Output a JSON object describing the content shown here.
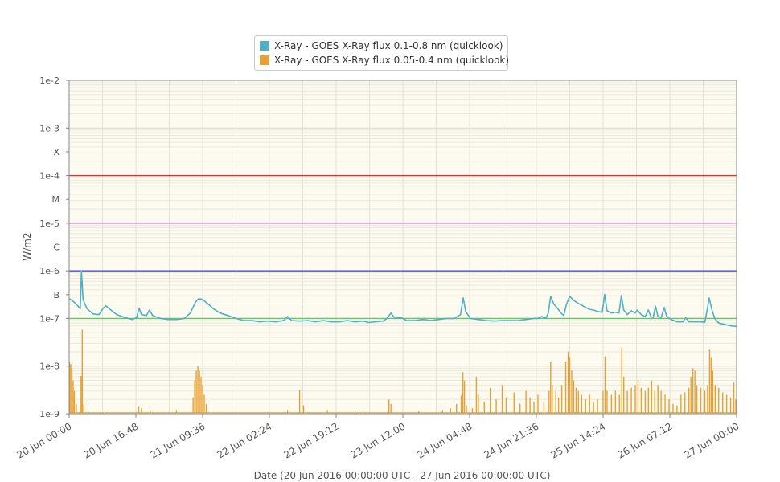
{
  "chart_data": {
    "type": "line",
    "title": "",
    "xlabel": "Date (20 Jun 2016 00:00:00 UTC - 27 Jun 2016 00:00:00 UTC)",
    "ylabel": "W/m2",
    "y_scale": "log",
    "ylim": [
      1e-09,
      0.01
    ],
    "x_range_hours": [
      0,
      168
    ],
    "x_ticks": [
      {
        "h": 0,
        "label": "20 Jun 00:00"
      },
      {
        "h": 16.8,
        "label": "20 Jun 16:48"
      },
      {
        "h": 33.6,
        "label": "21 Jun 09:36"
      },
      {
        "h": 50.4,
        "label": "22 Jun 02:24"
      },
      {
        "h": 67.2,
        "label": "22 Jun 19:12"
      },
      {
        "h": 84,
        "label": "23 Jun 12:00"
      },
      {
        "h": 100.8,
        "label": "24 Jun 04:48"
      },
      {
        "h": 117.6,
        "label": "24 Jun 21:36"
      },
      {
        "h": 134.4,
        "label": "25 Jun 14:24"
      },
      {
        "h": 151.2,
        "label": "26 Jun 07:12"
      },
      {
        "h": 168,
        "label": "27 Jun 00:00"
      }
    ],
    "y_ticks": [
      {
        "v": 0.01,
        "label": "1e-2"
      },
      {
        "v": 0.001,
        "label": "1e-3"
      },
      {
        "v": 0.000316,
        "label": "X"
      },
      {
        "v": 0.0001,
        "label": "1e-4"
      },
      {
        "v": 3.16e-05,
        "label": "M"
      },
      {
        "v": 1e-05,
        "label": "1e-5"
      },
      {
        "v": 3.16e-06,
        "label": "C"
      },
      {
        "v": 1e-06,
        "label": "1e-6"
      },
      {
        "v": 3.16e-07,
        "label": "B"
      },
      {
        "v": 1e-07,
        "label": "1e-7"
      },
      {
        "v": 1e-08,
        "label": "1e-8"
      },
      {
        "v": 1e-09,
        "label": "1e-9"
      }
    ],
    "threshold_lines": [
      {
        "v": 0.0001,
        "color": "#e03030"
      },
      {
        "v": 1e-05,
        "color": "#d070d0"
      },
      {
        "v": 1e-06,
        "color": "#3a3ad8"
      },
      {
        "v": 1e-07,
        "color": "#5ad05a"
      }
    ],
    "legend_position": "top-center",
    "grid": true,
    "series": [
      {
        "name": "X-Ray - GOES X-Ray flux 0.1-0.8 nm (quicklook)",
        "color": "#4fb0c6",
        "points": [
          [
            0,
            2.6e-07
          ],
          [
            1,
            2.3e-07
          ],
          [
            2,
            1.9e-07
          ],
          [
            2.8,
            1.6e-07
          ],
          [
            3.1,
            1e-06
          ],
          [
            3.5,
            2.5e-07
          ],
          [
            4.5,
            1.6e-07
          ],
          [
            6,
            1.25e-07
          ],
          [
            7.5,
            1.2e-07
          ],
          [
            8.5,
            1.6e-07
          ],
          [
            9.2,
            1.85e-07
          ],
          [
            10.5,
            1.5e-07
          ],
          [
            12,
            1.2e-07
          ],
          [
            14,
            1.05e-07
          ],
          [
            16,
            9.5e-08
          ],
          [
            17,
            1.05e-07
          ],
          [
            17.6,
            1.65e-07
          ],
          [
            18.2,
            1.2e-07
          ],
          [
            19.5,
            1.15e-07
          ],
          [
            20.2,
            1.5e-07
          ],
          [
            21,
            1.15e-07
          ],
          [
            23,
            1e-07
          ],
          [
            25,
            9.5e-08
          ],
          [
            27,
            9.5e-08
          ],
          [
            29,
            1e-07
          ],
          [
            30.5,
            1.3e-07
          ],
          [
            31.8,
            2.2e-07
          ],
          [
            32.6,
            2.6e-07
          ],
          [
            33.6,
            2.5e-07
          ],
          [
            35,
            2e-07
          ],
          [
            36.5,
            1.55e-07
          ],
          [
            38,
            1.3e-07
          ],
          [
            40,
            1.15e-07
          ],
          [
            42,
            1e-07
          ],
          [
            44,
            9e-08
          ],
          [
            46,
            9e-08
          ],
          [
            48,
            8.5e-08
          ],
          [
            50,
            8.8e-08
          ],
          [
            52,
            8.5e-08
          ],
          [
            54,
            9e-08
          ],
          [
            55,
            1.1e-07
          ],
          [
            56,
            9e-08
          ],
          [
            58,
            8.8e-08
          ],
          [
            60,
            9e-08
          ],
          [
            62,
            8.5e-08
          ],
          [
            64,
            9e-08
          ],
          [
            66,
            8.5e-08
          ],
          [
            68,
            8.5e-08
          ],
          [
            70,
            9e-08
          ],
          [
            72,
            8.5e-08
          ],
          [
            74,
            8.8e-08
          ],
          [
            75.5,
            8.2e-08
          ],
          [
            77,
            8.5e-08
          ],
          [
            79,
            8.8e-08
          ],
          [
            80,
            1e-07
          ],
          [
            81,
            1.3e-07
          ],
          [
            82,
            1e-07
          ],
          [
            83.5,
            1.05e-07
          ],
          [
            85,
            9e-08
          ],
          [
            87,
            9e-08
          ],
          [
            89,
            9.5e-08
          ],
          [
            91,
            9e-08
          ],
          [
            93,
            9.5e-08
          ],
          [
            95,
            1e-07
          ],
          [
            97,
            1e-07
          ],
          [
            98.5,
            1.2e-07
          ],
          [
            99.2,
            2.7e-07
          ],
          [
            99.8,
            1.4e-07
          ],
          [
            101,
            1e-07
          ],
          [
            103,
            9.5e-08
          ],
          [
            105,
            9e-08
          ],
          [
            107,
            8.8e-08
          ],
          [
            109,
            9e-08
          ],
          [
            111,
            9e-08
          ],
          [
            113,
            9e-08
          ],
          [
            115,
            9.5e-08
          ],
          [
            117,
            1e-07
          ],
          [
            118,
            1e-07
          ],
          [
            119,
            1.1e-07
          ],
          [
            120,
            1e-07
          ],
          [
            120.6,
            1.3e-07
          ],
          [
            121.2,
            2.9e-07
          ],
          [
            122,
            2e-07
          ],
          [
            123,
            1.6e-07
          ],
          [
            123.8,
            1.3e-07
          ],
          [
            124.5,
            1.15e-07
          ],
          [
            125.2,
            2e-07
          ],
          [
            126,
            2.9e-07
          ],
          [
            127,
            2.4e-07
          ],
          [
            128,
            2.1e-07
          ],
          [
            129,
            1.9e-07
          ],
          [
            130,
            1.7e-07
          ],
          [
            131,
            1.55e-07
          ],
          [
            132,
            1.5e-07
          ],
          [
            133,
            1.4e-07
          ],
          [
            134.2,
            1.35e-07
          ],
          [
            134.8,
            3.2e-07
          ],
          [
            135.4,
            1.45e-07
          ],
          [
            136.5,
            1.3e-07
          ],
          [
            137.5,
            1.35e-07
          ],
          [
            138.4,
            1.3e-07
          ],
          [
            139,
            3e-07
          ],
          [
            139.6,
            1.5e-07
          ],
          [
            140.5,
            1.2e-07
          ],
          [
            141.5,
            1.45e-07
          ],
          [
            142.5,
            1.3e-07
          ],
          [
            143,
            1.5e-07
          ],
          [
            144,
            1.2e-07
          ],
          [
            145,
            1.1e-07
          ],
          [
            145.8,
            1.5e-07
          ],
          [
            146.4,
            1.1e-07
          ],
          [
            147,
            1.05e-07
          ],
          [
            147.6,
            1.8e-07
          ],
          [
            148.2,
            1.1e-07
          ],
          [
            149,
            1.05e-07
          ],
          [
            149.8,
            1.7e-07
          ],
          [
            150.4,
            1.1e-07
          ],
          [
            151.5,
            9.5e-08
          ],
          [
            153,
            8.5e-08
          ],
          [
            154.5,
            8.5e-08
          ],
          [
            155.2,
            1.05e-07
          ],
          [
            156,
            8.5e-08
          ],
          [
            157.5,
            8.5e-08
          ],
          [
            159,
            8.5e-08
          ],
          [
            160,
            8.3e-08
          ],
          [
            160.6,
            1.5e-07
          ],
          [
            161.1,
            2.7e-07
          ],
          [
            161.8,
            1.5e-07
          ],
          [
            162.5,
            1e-07
          ],
          [
            163.5,
            8e-08
          ],
          [
            165,
            7.5e-08
          ],
          [
            166.5,
            7e-08
          ],
          [
            168,
            6.8e-08
          ]
        ]
      },
      {
        "name": "X-Ray - GOES X-Ray flux 0.05-0.4 nm (quicklook)",
        "color": "#e8a030",
        "baseline": 1.05e-09,
        "spikes": [
          [
            0.1,
            1.2e-08
          ],
          [
            0.4,
            1.1e-08
          ],
          [
            0.7,
            9e-09
          ],
          [
            1.0,
            5e-09
          ],
          [
            1.3,
            3e-09
          ],
          [
            1.8,
            1.6e-09
          ],
          [
            3.0,
            6.2e-09
          ],
          [
            3.3,
            5.8e-08
          ],
          [
            3.7,
            1.6e-09
          ],
          [
            9,
            1.15e-09
          ],
          [
            17.5,
            1.4e-09
          ],
          [
            18.2,
            1.3e-09
          ],
          [
            20.4,
            1.2e-09
          ],
          [
            27,
            1.2e-09
          ],
          [
            31.2,
            2.2e-09
          ],
          [
            31.6,
            5e-09
          ],
          [
            32,
            8e-09
          ],
          [
            32.4,
            1e-08
          ],
          [
            32.8,
            8e-09
          ],
          [
            33.2,
            6e-09
          ],
          [
            33.6,
            4e-09
          ],
          [
            34,
            2.5e-09
          ],
          [
            34.5,
            1.6e-09
          ],
          [
            55,
            1.2e-09
          ],
          [
            58,
            3.1e-09
          ],
          [
            59,
            1.5e-09
          ],
          [
            65,
            1.2e-09
          ],
          [
            72,
            1.15e-09
          ],
          [
            74,
            1.15e-09
          ],
          [
            80.5,
            2e-09
          ],
          [
            81,
            1.6e-09
          ],
          [
            88,
            1.15e-09
          ],
          [
            94,
            1.2e-09
          ],
          [
            96,
            1.3e-09
          ],
          [
            97.5,
            1.6e-09
          ],
          [
            98.7,
            2.4e-09
          ],
          [
            99.1,
            7.5e-09
          ],
          [
            99.5,
            5e-09
          ],
          [
            100,
            1.5e-09
          ],
          [
            101.5,
            1.3e-09
          ],
          [
            102.5,
            6e-09
          ],
          [
            103,
            2.5e-09
          ],
          [
            104.5,
            1.8e-09
          ],
          [
            106,
            3.5e-09
          ],
          [
            107.5,
            2e-09
          ],
          [
            109,
            4e-09
          ],
          [
            110,
            2.2e-09
          ],
          [
            112,
            2.8e-09
          ],
          [
            113.5,
            1.6e-09
          ],
          [
            115,
            3e-09
          ],
          [
            116,
            2.2e-09
          ],
          [
            117,
            1.8e-09
          ],
          [
            118,
            2.5e-09
          ],
          [
            119.5,
            1.8e-09
          ],
          [
            120.8,
            3e-09
          ],
          [
            121.2,
            1.25e-08
          ],
          [
            121.6,
            4e-09
          ],
          [
            122.5,
            3e-09
          ],
          [
            123.2,
            2.2e-09
          ],
          [
            124,
            4e-09
          ],
          [
            125,
            1.25e-08
          ],
          [
            125.6,
            2e-08
          ],
          [
            126,
            1.5e-08
          ],
          [
            126.5,
            8e-09
          ],
          [
            127,
            5e-09
          ],
          [
            127.6,
            3.5e-09
          ],
          [
            128.2,
            3e-09
          ],
          [
            129,
            2.5e-09
          ],
          [
            130,
            2e-09
          ],
          [
            131,
            2.5e-09
          ],
          [
            132,
            1.8e-09
          ],
          [
            133,
            2e-09
          ],
          [
            134.4,
            3e-09
          ],
          [
            134.9,
            1.6e-08
          ],
          [
            135.4,
            3e-09
          ],
          [
            136.5,
            2.5e-09
          ],
          [
            137.5,
            3e-09
          ],
          [
            138.5,
            2.5e-09
          ],
          [
            139.1,
            2.4e-08
          ],
          [
            139.6,
            6e-09
          ],
          [
            140.5,
            3e-09
          ],
          [
            141.5,
            3.5e-09
          ],
          [
            142.5,
            4e-09
          ],
          [
            143.2,
            5e-09
          ],
          [
            144,
            3.5e-09
          ],
          [
            145,
            3e-09
          ],
          [
            145.8,
            3.5e-09
          ],
          [
            146.6,
            5e-09
          ],
          [
            147.4,
            3e-09
          ],
          [
            148.2,
            4e-09
          ],
          [
            149,
            3e-09
          ],
          [
            150,
            2.5e-09
          ],
          [
            151,
            2e-09
          ],
          [
            152,
            1.6e-09
          ],
          [
            153,
            1.5e-09
          ],
          [
            154,
            2.5e-09
          ],
          [
            155,
            2.8e-09
          ],
          [
            156,
            3.5e-09
          ],
          [
            156.5,
            6e-09
          ],
          [
            157,
            9e-09
          ],
          [
            157.5,
            8e-09
          ],
          [
            158,
            4e-09
          ],
          [
            159,
            3.5e-09
          ],
          [
            160,
            3e-09
          ],
          [
            160.7,
            4e-09
          ],
          [
            161.2,
            2.2e-08
          ],
          [
            161.6,
            1.5e-08
          ],
          [
            162,
            8e-09
          ],
          [
            162.6,
            4e-09
          ],
          [
            163.5,
            3.5e-09
          ],
          [
            164.5,
            2.8e-09
          ],
          [
            165.5,
            2.5e-09
          ],
          [
            166.5,
            2.2e-09
          ],
          [
            167.3,
            4.5e-09
          ],
          [
            167.8,
            2e-09
          ]
        ]
      }
    ]
  }
}
